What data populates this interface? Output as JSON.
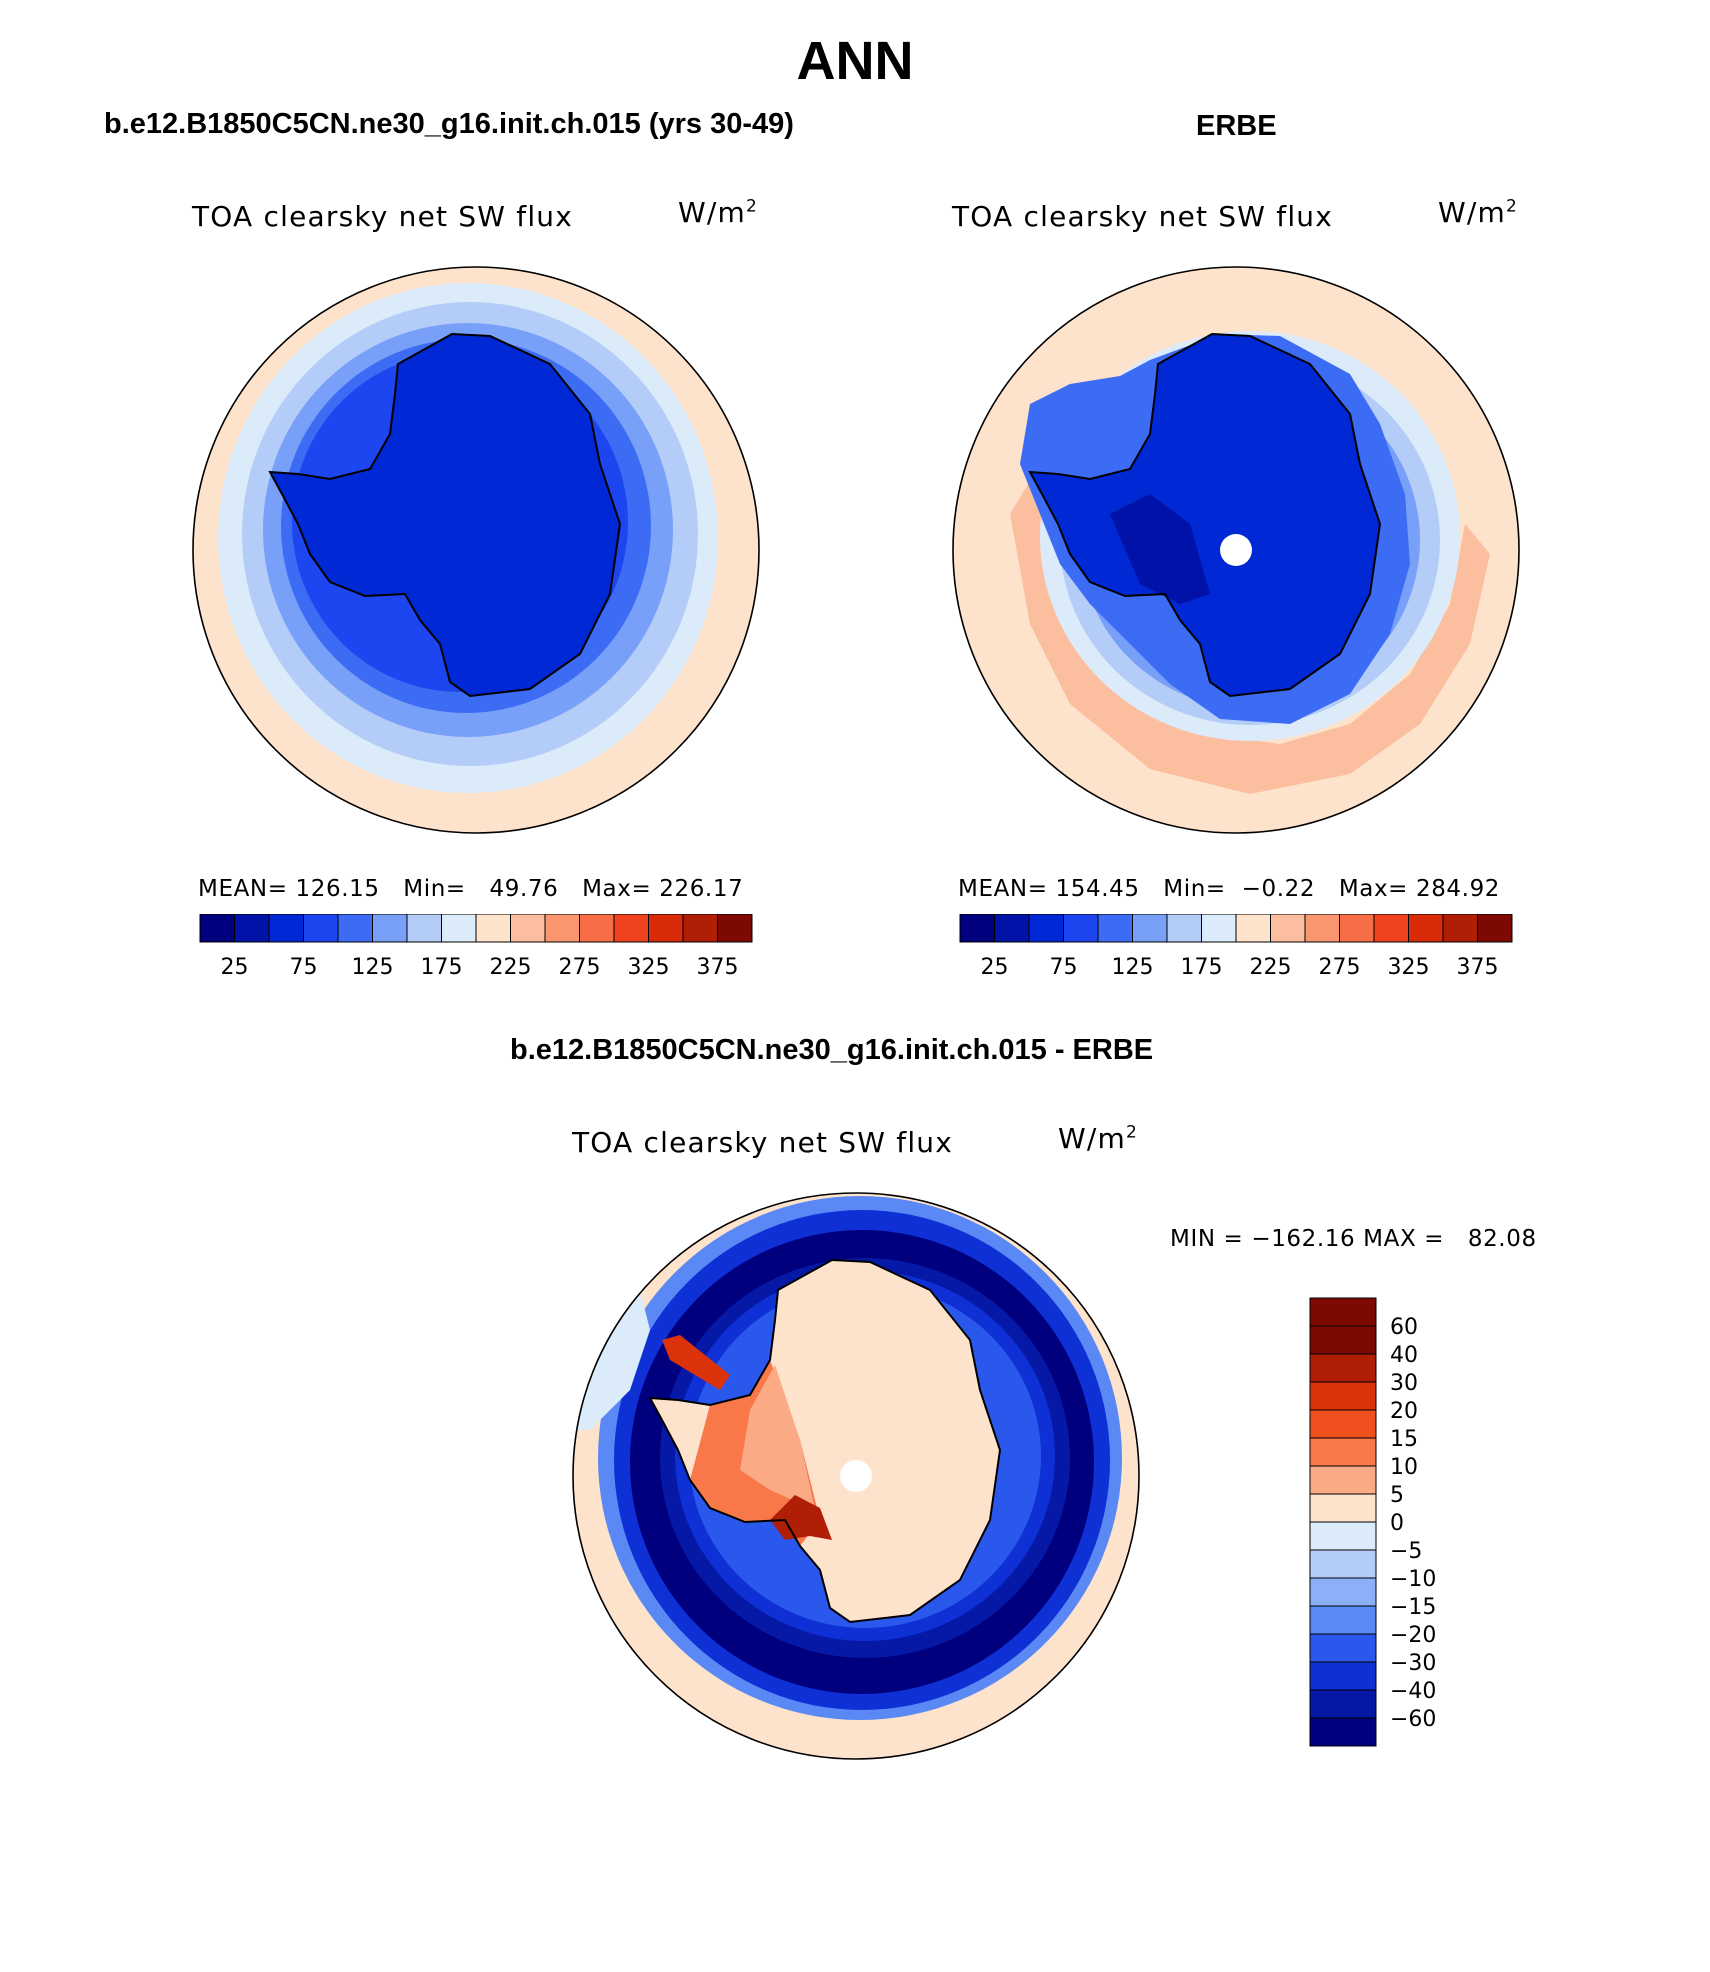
{
  "main_title": "ANN",
  "colors": {
    "model_scale": [
      "#00007e",
      "#0012a8",
      "#0028d4",
      "#1e46f0",
      "#3c6cf4",
      "#78a0f8",
      "#b4cdf8",
      "#dcebfa",
      "#fde2cc",
      "#fbbfa0",
      "#f99670",
      "#f76e46",
      "#f0421e",
      "#d92b0a",
      "#b01e06",
      "#7d0a02"
    ],
    "diff_scale": [
      "#7d0a02",
      "#b01e06",
      "#dc320a",
      "#f0501e",
      "#f8784a",
      "#fbaa86",
      "#fde2cc",
      "#dcebfa",
      "#b4cdf8",
      "#8cb0f8",
      "#5a88f4",
      "#2a58ec",
      "#0e30d4",
      "#0618a6",
      "#00007e"
    ],
    "circle_edge": "#000000"
  },
  "panels": {
    "model": {
      "case_title": "b.e12.B1850C5CN.ne30_g16.init.ch.015 (yrs 30-49)",
      "plot_title": "TOA clearsky net SW flux",
      "units": "W/m",
      "units_sup": "2",
      "stats": "MEAN= 126.15   Min=   49.76   Max= 226.17"
    },
    "obs": {
      "case_title": "ERBE",
      "plot_title": "TOA clearsky net SW flux",
      "units": "W/m",
      "units_sup": "2",
      "stats": "MEAN= 154.45   Min=  −0.22   Max= 284.92"
    },
    "diff": {
      "case_title": "b.e12.B1850C5CN.ne30_g16.init.ch.015 - ERBE",
      "plot_title": "TOA clearsky net SW flux",
      "units": "W/m",
      "units_sup": "2",
      "stats": "MIN = −162.16 MAX =   82.08"
    }
  },
  "chart_data": [
    {
      "type": "heatmap",
      "title": "TOA clearsky net SW flux",
      "units": "W/m2",
      "projection": "south polar stereographic",
      "mean": 126.15,
      "min": 49.76,
      "max": 226.17,
      "colorbar_levels": [
        25,
        50,
        75,
        100,
        125,
        150,
        175,
        200,
        225,
        250,
        275,
        300,
        325,
        350,
        375
      ],
      "colorbar_tick_labels": [
        "25",
        "75",
        "125",
        "175",
        "225",
        "275",
        "325",
        "375"
      ]
    },
    {
      "type": "heatmap",
      "title": "TOA clearsky net SW flux",
      "units": "W/m2",
      "projection": "south polar stereographic",
      "mean": 154.45,
      "min": -0.22,
      "max": 284.92,
      "colorbar_levels": [
        25,
        50,
        75,
        100,
        125,
        150,
        175,
        200,
        225,
        250,
        275,
        300,
        325,
        350,
        375
      ],
      "colorbar_tick_labels": [
        "25",
        "75",
        "125",
        "175",
        "225",
        "275",
        "325",
        "375"
      ]
    },
    {
      "type": "heatmap",
      "title": "TOA clearsky net SW flux",
      "units": "W/m2",
      "projection": "south polar stereographic",
      "min": -162.16,
      "max": 82.08,
      "colorbar_levels": [
        60,
        40,
        30,
        20,
        15,
        10,
        5,
        0,
        -5,
        -10,
        -15,
        -20,
        -30,
        -40,
        -60
      ],
      "colorbar_tick_labels": [
        "60",
        "40",
        "30",
        "20",
        "15",
        "10",
        "5",
        "0",
        "−5",
        "−10",
        "−15",
        "−20",
        "−30",
        "−40",
        "−60"
      ]
    }
  ]
}
